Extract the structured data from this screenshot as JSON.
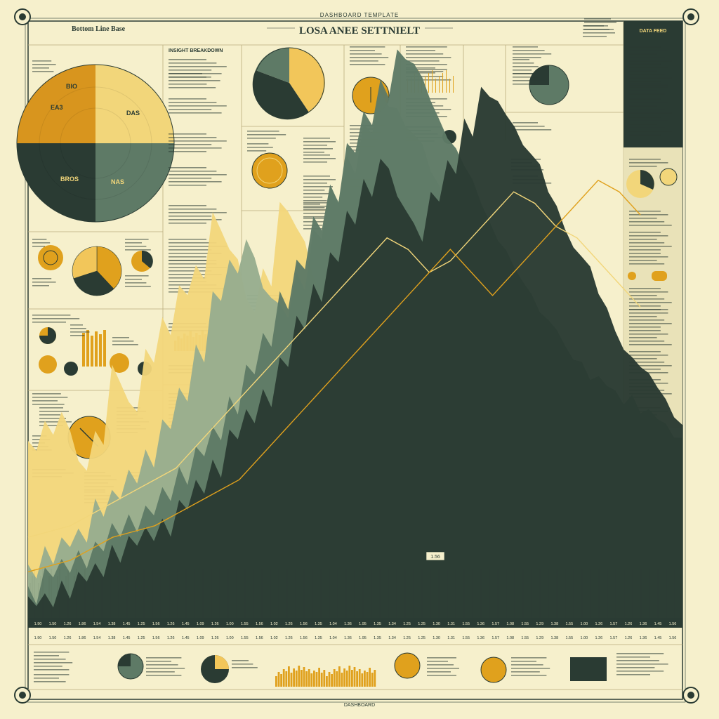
{
  "header": {
    "top_label": "DASHBOARD TEMPLATE",
    "title": "LOSA ANEE SETTNIELT",
    "subtitle": "",
    "left_title": "Bottom Line Base",
    "footer_label": "DASHBOARD"
  },
  "colors": {
    "paper": "#f6f0cc",
    "dark": "#2a3b33",
    "mid": "#5e7a66",
    "sage": "#98ad8e",
    "gold": "#e0a11d",
    "cream": "#f2d67a"
  },
  "top_pie": {
    "labels": [
      "BIO",
      "EA3",
      "DAS",
      "BROS",
      "NAS"
    ]
  },
  "panel_labels": {
    "insight": "INSIGHT BREAKDOWN",
    "side_header": "DATA FEED"
  },
  "chart_data": {
    "type": "area",
    "title": "",
    "xlabel": "",
    "ylabel": "",
    "ylim": [
      0,
      100
    ],
    "x_ticks": [
      "1.90",
      "1.50",
      "1.26",
      "1.86",
      "1.54",
      "1.38",
      "1.45",
      "1.25",
      "1.56",
      "1.26",
      "1.45",
      "1.09",
      "1.26",
      "1.00",
      "1.55",
      "1.56",
      "1.02",
      "1.26",
      "1.56",
      "1.35",
      "1.04",
      "1.36",
      "1.95",
      "1.35",
      "1.34",
      "1.25",
      "1.25",
      "1.30",
      "1.31",
      "1.55",
      "1.36",
      "1.57",
      "1.08",
      "1.55",
      "1.29",
      "1.38",
      "1.55",
      "1.00",
      "1.26",
      "1.57",
      "1.26",
      "1.36",
      "1.45",
      "1.56"
    ],
    "annotation": "1.56",
    "series": [
      {
        "values": [
          30,
          34,
          36,
          28,
          32,
          44,
          38,
          46,
          52,
          58,
          62,
          70,
          64,
          56,
          60,
          72,
          68,
          60,
          52,
          48,
          44,
          40,
          36,
          42,
          38,
          34,
          30,
          28,
          26,
          30,
          34,
          28,
          24,
          20,
          18,
          22,
          26,
          30,
          34,
          28
        ]
      },
      {
        "values": [
          10,
          12,
          14,
          16,
          20,
          22,
          26,
          30,
          34,
          40,
          48,
          56,
          62,
          66,
          58,
          54,
          60,
          68,
          74,
          80,
          86,
          92,
          88,
          84,
          78,
          70,
          64,
          60,
          56,
          52,
          48,
          44,
          40,
          38,
          36,
          34,
          30,
          28,
          26,
          24
        ]
      },
      {
        "values": [
          6,
          8,
          10,
          12,
          14,
          16,
          18,
          20,
          22,
          26,
          30,
          34,
          38,
          44,
          50,
          56,
          62,
          70,
          76,
          82,
          88,
          94,
          98,
          96,
          90,
          84,
          78,
          72,
          66,
          60,
          56,
          52,
          48,
          44,
          42,
          40,
          38,
          36,
          34,
          32
        ]
      },
      {
        "values": [
          4,
          5,
          6,
          8,
          10,
          12,
          14,
          16,
          18,
          20,
          24,
          28,
          32,
          36,
          40,
          46,
          52,
          58,
          64,
          70,
          76,
          80,
          74,
          68,
          74,
          80,
          86,
          92,
          90,
          86,
          80,
          74,
          68,
          62,
          56,
          50,
          46,
          42,
          38,
          34
        ]
      }
    ],
    "trend_lines": [
      {
        "values": [
          14,
          15,
          16,
          18,
          20,
          22,
          24,
          26,
          30,
          34,
          38,
          42,
          46,
          50,
          54,
          58,
          62,
          66,
          64,
          60,
          62,
          66,
          70,
          74,
          72,
          68,
          66,
          62,
          58,
          54
        ]
      },
      {
        "values": [
          8,
          9,
          10,
          12,
          14,
          15,
          16,
          18,
          20,
          22,
          24,
          28,
          32,
          36,
          40,
          44,
          48,
          52,
          56,
          60,
          64,
          60,
          56,
          60,
          64,
          68,
          72,
          76,
          74,
          70
        ]
      }
    ],
    "small_pie": [
      38,
      32,
      30
    ],
    "mini_bars": [
      30,
      42,
      36,
      50,
      44,
      58,
      40,
      52,
      46,
      60,
      48,
      56,
      44,
      50,
      38,
      46,
      42,
      54,
      40,
      48
    ]
  }
}
